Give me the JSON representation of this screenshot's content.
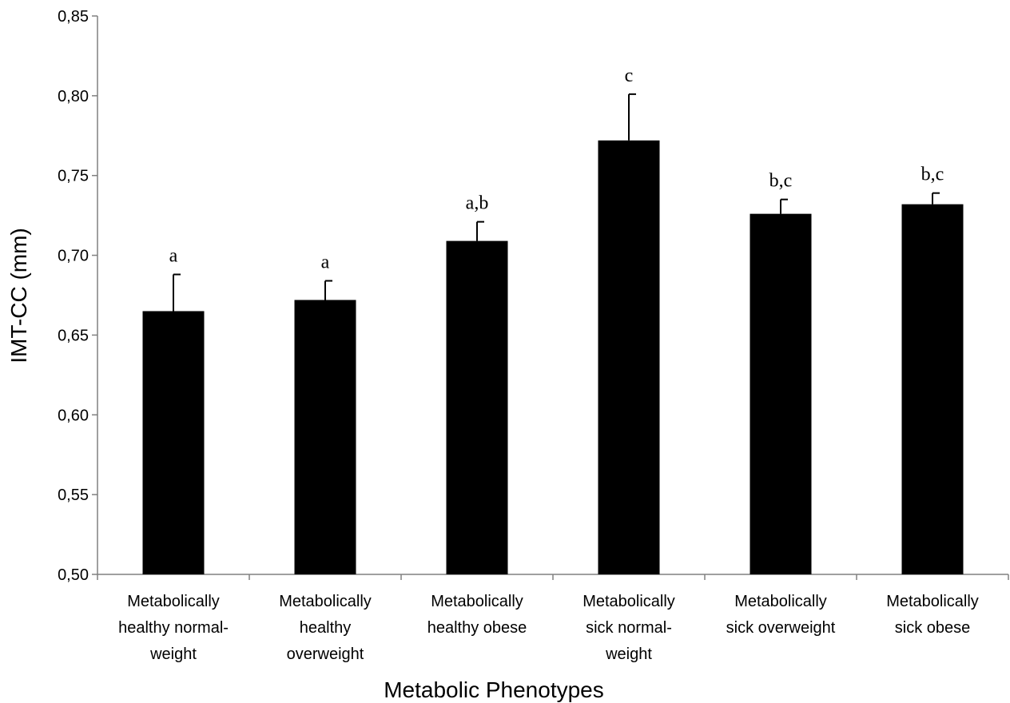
{
  "chart_data": {
    "type": "bar",
    "xlabel": "Metabolic Phenotypes",
    "ylabel": "IMT-CC (mm)",
    "ylim": [
      0.5,
      0.85
    ],
    "y_ticks": [
      "0,50",
      "0,55",
      "0,60",
      "0,65",
      "0,70",
      "0,75",
      "0,80",
      "0,85"
    ],
    "grid": false,
    "categories": [
      [
        "Metabolically",
        "healthy normal-",
        "weight"
      ],
      [
        "Metabolically",
        "healthy",
        "overweight"
      ],
      [
        "Metabolically",
        "healthy obese"
      ],
      [
        "Metabolically",
        "sick normal-",
        "weight"
      ],
      [
        "Metabolically",
        "sick overweight"
      ],
      [
        "Metabolically",
        "sick obese"
      ]
    ],
    "values": [
      0.665,
      0.672,
      0.709,
      0.772,
      0.726,
      0.732
    ],
    "error_upper": [
      0.688,
      0.684,
      0.721,
      0.801,
      0.735,
      0.739
    ],
    "annotations": [
      "a",
      "a",
      "a,b",
      "c",
      "b,c",
      "b,c"
    ],
    "bar_color": "#000000"
  }
}
